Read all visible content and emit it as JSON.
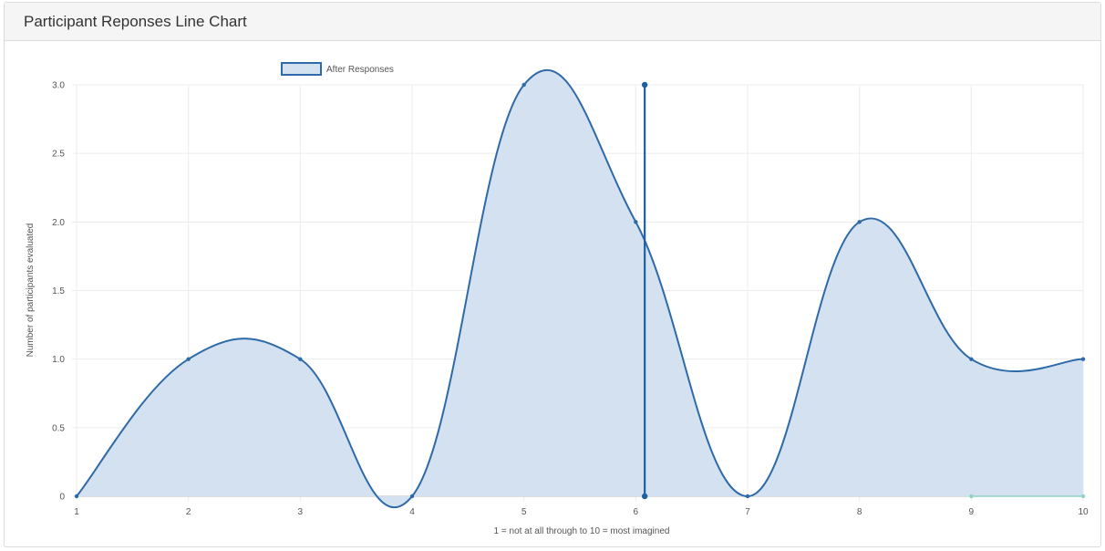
{
  "panel": {
    "title": "Participant Reponses Line Chart"
  },
  "chart_data": {
    "type": "area",
    "x": [
      1,
      2,
      3,
      4,
      5,
      6,
      7,
      8,
      9,
      10
    ],
    "series": [
      {
        "name": "After Responses",
        "values": [
          0,
          1,
          1,
          0,
          3,
          2,
          0,
          2,
          1,
          1
        ],
        "color": "#2e6aa8",
        "fill": "#d4e1f1"
      },
      {
        "values": [
          null,
          null,
          null,
          null,
          null,
          null,
          null,
          null,
          0,
          0
        ],
        "color": "#8fd3c4"
      }
    ],
    "yticks": [
      "0",
      "0.5",
      "1.0",
      "1.5",
      "2.0",
      "2.5",
      "3.0"
    ],
    "xticks": [
      "1",
      "2",
      "3",
      "4",
      "5",
      "6",
      "7",
      "8",
      "9",
      "10"
    ],
    "xlabel": "1 = not at all through to 10 = most imagined",
    "ylabel": "Number of participants evaluated",
    "ylim": [
      0,
      3
    ],
    "grid": true,
    "legend": "top",
    "cursor_marker": {
      "x": 6.08,
      "y_from": 0,
      "y_to": 3,
      "color": "#2160a0"
    }
  }
}
